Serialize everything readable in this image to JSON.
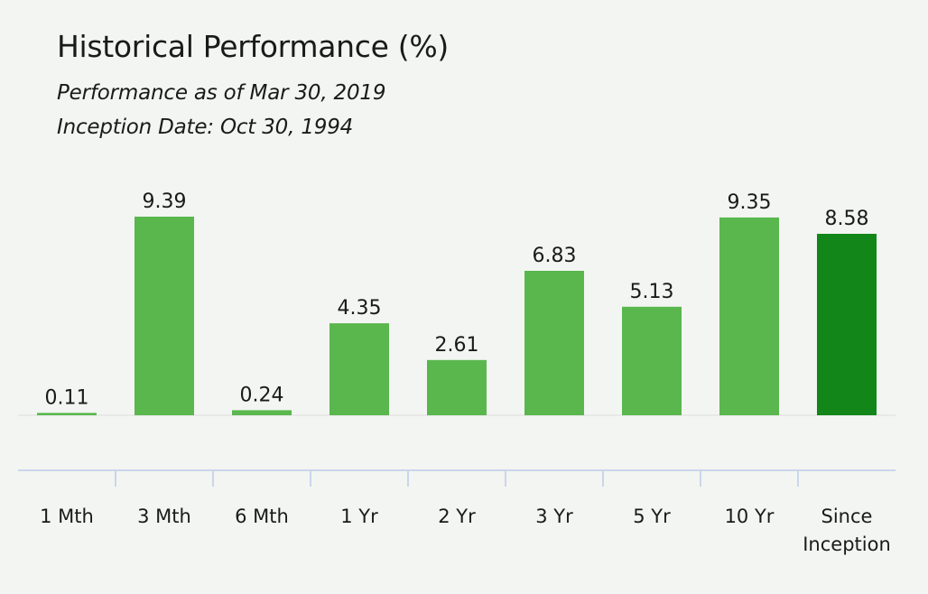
{
  "header": {
    "title": "Historical Performance (%)",
    "performance_as_of": "Performance as of Mar 30, 2019",
    "inception_date": "Inception Date: Oct 30, 1994"
  },
  "colors": {
    "background": "#f3f5f2",
    "bar": "#59b74e",
    "bar_highlight": "#138619",
    "axis": "#c9d6ea",
    "baseline": "#dcdcdc"
  },
  "chart_data": {
    "type": "bar",
    "title": "Historical Performance (%)",
    "categories": [
      "1 Mth",
      "3 Mth",
      "6 Mth",
      "1 Yr",
      "2 Yr",
      "3 Yr",
      "5 Yr",
      "10 Yr",
      "Since Inception"
    ],
    "category_lines": [
      [
        "1 Mth"
      ],
      [
        "3 Mth"
      ],
      [
        "6 Mth"
      ],
      [
        "1 Yr"
      ],
      [
        "2 Yr"
      ],
      [
        "3 Yr"
      ],
      [
        "5 Yr"
      ],
      [
        "10 Yr"
      ],
      [
        "Since",
        "Inception"
      ]
    ],
    "values": [
      0.11,
      9.39,
      0.24,
      4.35,
      2.61,
      6.83,
      5.13,
      9.35,
      8.58
    ],
    "value_labels": [
      "0.11",
      "9.39",
      "0.24",
      "4.35",
      "2.61",
      "6.83",
      "5.13",
      "9.35",
      "8.58"
    ],
    "highlight_index": 8,
    "xlabel": "",
    "ylabel": "",
    "ylim": [
      0,
      9.39
    ],
    "grid": false,
    "legend": "none"
  }
}
